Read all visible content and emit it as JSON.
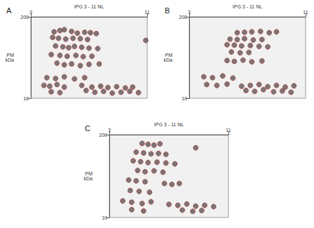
{
  "chart_data": [
    {
      "type": "scatter",
      "title": "A",
      "x_label": "IPG 3 - 11 NL",
      "y_label": "PM kDa",
      "xlim": [
        3,
        11
      ],
      "ylim": [
        10,
        200
      ],
      "xticks": [
        3,
        11
      ],
      "yticks": [
        10,
        200
      ],
      "grid": false,
      "marker": "circle",
      "color": "#4d4d4d",
      "points": [
        [
          4.6,
          165
        ],
        [
          5.0,
          168
        ],
        [
          5.3,
          170
        ],
        [
          5.8,
          166
        ],
        [
          6.2,
          162
        ],
        [
          6.7,
          164
        ],
        [
          7.1,
          163
        ],
        [
          7.5,
          161
        ],
        [
          4.5,
          152
        ],
        [
          4.9,
          150
        ],
        [
          5.4,
          148
        ],
        [
          5.9,
          150
        ],
        [
          6.4,
          149
        ],
        [
          6.9,
          147
        ],
        [
          4.7,
          132
        ],
        [
          5.2,
          130
        ],
        [
          5.6,
          128
        ],
        [
          6.0,
          131
        ],
        [
          6.5,
          129
        ],
        [
          7.0,
          127
        ],
        [
          7.6,
          126
        ],
        [
          4.4,
          112
        ],
        [
          5.0,
          110
        ],
        [
          5.5,
          108
        ],
        [
          6.1,
          110
        ],
        [
          6.6,
          107
        ],
        [
          7.2,
          108
        ],
        [
          4.8,
          92
        ],
        [
          5.3,
          88
        ],
        [
          5.8,
          90
        ],
        [
          6.4,
          86
        ],
        [
          7.0,
          89
        ],
        [
          7.7,
          90
        ],
        [
          4.1,
          58
        ],
        [
          4.7,
          56
        ],
        [
          5.3,
          60
        ],
        [
          6.0,
          55
        ],
        [
          6.7,
          58
        ],
        [
          3.9,
          40
        ],
        [
          4.3,
          38
        ],
        [
          4.8,
          42
        ],
        [
          5.3,
          36
        ],
        [
          6.5,
          40
        ],
        [
          7.2,
          36
        ],
        [
          7.8,
          38
        ],
        [
          8.3,
          35
        ],
        [
          8.9,
          37
        ],
        [
          9.5,
          34
        ],
        [
          10.0,
          36
        ],
        [
          4.4,
          25
        ],
        [
          5.0,
          23
        ],
        [
          6.8,
          28
        ],
        [
          7.4,
          24
        ],
        [
          8.0,
          26
        ],
        [
          8.6,
          22
        ],
        [
          9.2,
          24
        ],
        [
          9.8,
          26
        ],
        [
          10.4,
          23
        ],
        [
          10.9,
          145
        ]
      ]
    },
    {
      "type": "scatter",
      "title": "B",
      "x_label": "IPG 3 - 11 NL",
      "y_label": "PM kDa",
      "xlim": [
        3,
        11
      ],
      "ylim": [
        10,
        200
      ],
      "xticks": [
        3,
        11
      ],
      "yticks": [
        10,
        200
      ],
      "grid": false,
      "marker": "circle",
      "color": "#4d4d4d",
      "points": [
        [
          6.3,
          163
        ],
        [
          6.8,
          164
        ],
        [
          7.3,
          165
        ],
        [
          7.9,
          166
        ],
        [
          8.5,
          163
        ],
        [
          9.0,
          165
        ],
        [
          5.8,
          148
        ],
        [
          6.3,
          147
        ],
        [
          6.8,
          149
        ],
        [
          7.4,
          146
        ],
        [
          8.0,
          147
        ],
        [
          5.6,
          135
        ],
        [
          6.1,
          134
        ],
        [
          6.6,
          132
        ],
        [
          7.2,
          133
        ],
        [
          7.8,
          131
        ],
        [
          8.4,
          130
        ],
        [
          5.9,
          118
        ],
        [
          6.5,
          116
        ],
        [
          7.1,
          117
        ],
        [
          5.6,
          98
        ],
        [
          6.1,
          96
        ],
        [
          6.7,
          99
        ],
        [
          7.3,
          95
        ],
        [
          8.0,
          97
        ],
        [
          4.0,
          60
        ],
        [
          4.6,
          58
        ],
        [
          5.3,
          62
        ],
        [
          6.0,
          57
        ],
        [
          4.2,
          42
        ],
        [
          4.9,
          40
        ],
        [
          5.6,
          43
        ],
        [
          6.6,
          38
        ],
        [
          7.2,
          40
        ],
        [
          7.8,
          42
        ],
        [
          8.4,
          37
        ],
        [
          9.0,
          40
        ],
        [
          9.6,
          36
        ],
        [
          10.2,
          39
        ],
        [
          6.9,
          28
        ],
        [
          7.5,
          26
        ],
        [
          8.1,
          30
        ],
        [
          8.8,
          25
        ],
        [
          9.4,
          27
        ],
        [
          10.0,
          24
        ]
      ]
    },
    {
      "type": "scatter",
      "title": "C",
      "x_label": "IPG 3 - 11 NL",
      "y_label": "PM kDa",
      "xlim": [
        3,
        11
      ],
      "ylim": [
        10,
        200
      ],
      "xticks": [
        3,
        11
      ],
      "yticks": [
        10,
        200
      ],
      "grid": false,
      "marker": "circle",
      "color": "#4d4d4d",
      "points": [
        [
          5.2,
          180
        ],
        [
          5.6,
          178
        ],
        [
          6.0,
          176
        ],
        [
          6.4,
          179
        ],
        [
          8.8,
          170
        ],
        [
          4.8,
          160
        ],
        [
          5.3,
          158
        ],
        [
          5.8,
          156
        ],
        [
          6.3,
          157
        ],
        [
          6.8,
          155
        ],
        [
          4.6,
          140
        ],
        [
          5.1,
          138
        ],
        [
          5.6,
          136
        ],
        [
          6.2,
          137
        ],
        [
          6.8,
          135
        ],
        [
          7.4,
          133
        ],
        [
          4.9,
          118
        ],
        [
          5.4,
          115
        ],
        [
          6.0,
          117
        ],
        [
          6.6,
          114
        ],
        [
          4.3,
          96
        ],
        [
          4.8,
          94
        ],
        [
          5.4,
          92
        ],
        [
          6.7,
          88
        ],
        [
          7.2,
          86
        ],
        [
          7.7,
          88
        ],
        [
          4.4,
          72
        ],
        [
          5.0,
          70
        ],
        [
          5.7,
          68
        ],
        [
          3.9,
          48
        ],
        [
          4.5,
          45
        ],
        [
          5.2,
          42
        ],
        [
          5.8,
          46
        ],
        [
          7.0,
          40
        ],
        [
          7.6,
          38
        ],
        [
          8.2,
          41
        ],
        [
          8.8,
          36
        ],
        [
          9.4,
          38
        ],
        [
          10.0,
          35
        ],
        [
          4.5,
          28
        ],
        [
          5.3,
          25
        ],
        [
          7.9,
          27
        ],
        [
          8.6,
          24
        ],
        [
          9.2,
          26
        ]
      ]
    }
  ]
}
